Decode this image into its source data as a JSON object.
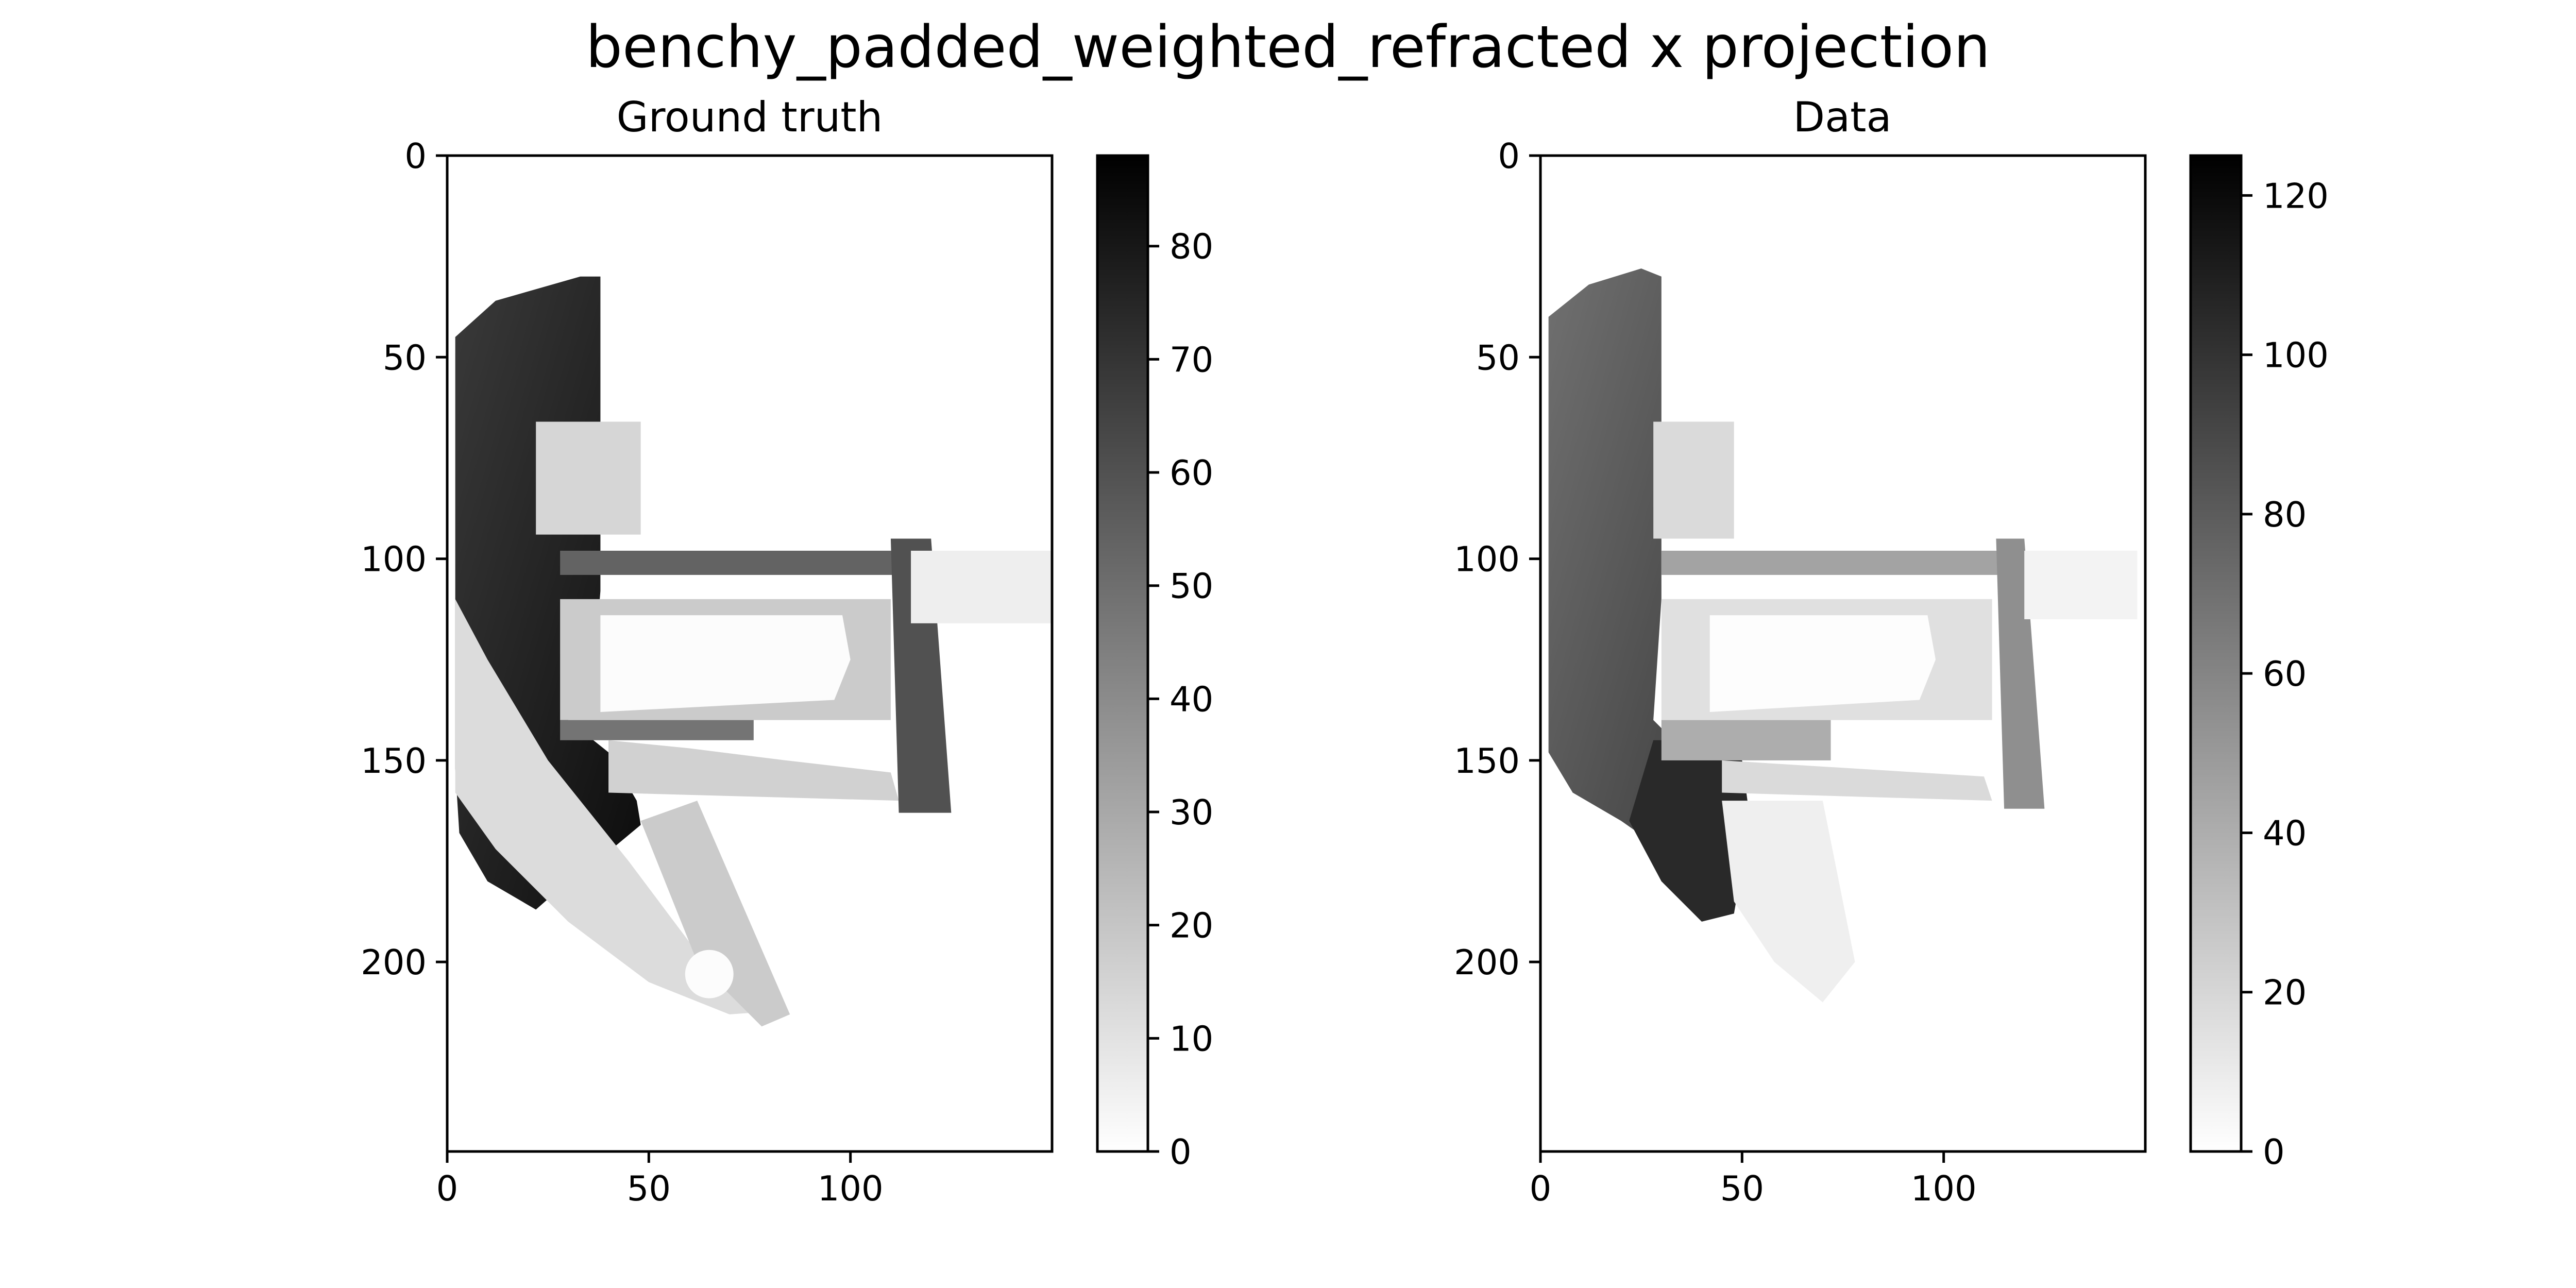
{
  "figure_title": "benchy_padded_weighted_refracted x projection",
  "chart_data": [
    {
      "type": "heatmap",
      "title": "Ground truth",
      "colormap": "gray_r",
      "x_range": [
        0,
        150
      ],
      "y_range": [
        0,
        247
      ],
      "y_inverted": true,
      "x_ticks": [
        0,
        50,
        100
      ],
      "y_ticks": [
        0,
        50,
        100,
        150,
        200
      ],
      "colorbar": {
        "min": 0,
        "max": 88,
        "ticks": [
          0,
          10,
          20,
          30,
          40,
          50,
          60,
          70,
          80
        ]
      },
      "regions": [
        {
          "shape": "poly",
          "pts": [
            [
              2,
              45
            ],
            [
              12,
              36
            ],
            [
              33,
              30
            ],
            [
              38,
              30
            ],
            [
              38,
              108
            ],
            [
              37,
              120
            ],
            [
              31,
              125
            ],
            [
              30,
              140
            ],
            [
              40,
              148
            ],
            [
              47,
              160
            ],
            [
              48,
              166
            ],
            [
              36,
              176
            ],
            [
              30,
              180
            ],
            [
              22,
              187
            ],
            [
              10,
              180
            ],
            [
              3,
              168
            ],
            [
              2,
              152
            ]
          ],
          "value": 68,
          "gradient_to": 84
        },
        {
          "shape": "poly",
          "pts": [
            [
              2,
              110
            ],
            [
              10,
              125
            ],
            [
              25,
              150
            ],
            [
              45,
              175
            ],
            [
              60,
              195
            ],
            [
              75,
              208
            ],
            [
              84,
              212
            ],
            [
              70,
              213
            ],
            [
              50,
              205
            ],
            [
              30,
              190
            ],
            [
              12,
              172
            ],
            [
              2,
              158
            ]
          ],
          "value": 12
        },
        {
          "shape": "poly",
          "pts": [
            [
              48,
              165
            ],
            [
              62,
              160
            ],
            [
              85,
              213
            ],
            [
              78,
              216
            ],
            [
              62,
              200
            ]
          ],
          "value": 18
        },
        {
          "shape": "circle",
          "cx": 65,
          "cy": 203,
          "r": 6,
          "value": 1
        },
        {
          "shape": "rect",
          "x0": 22,
          "y0": 66,
          "x1": 48,
          "y1": 94,
          "value": 14
        },
        {
          "shape": "rect",
          "x0": 28,
          "y0": 98,
          "x1": 112,
          "y1": 104,
          "value": 54
        },
        {
          "shape": "rect",
          "x0": 28,
          "y0": 110,
          "x1": 110,
          "y1": 140,
          "value": 18
        },
        {
          "shape": "poly",
          "pts": [
            [
              38,
              114
            ],
            [
              98,
              114
            ],
            [
              100,
              125
            ],
            [
              96,
              135
            ],
            [
              38,
              138
            ]
          ],
          "value": 1
        },
        {
          "shape": "rect",
          "x0": 28,
          "y0": 140,
          "x1": 76,
          "y1": 145,
          "value": 48
        },
        {
          "shape": "poly",
          "pts": [
            [
              40,
              145
            ],
            [
              60,
              147
            ],
            [
              84,
              150
            ],
            [
              110,
              153
            ],
            [
              112,
              160
            ],
            [
              40,
              158
            ]
          ],
          "value": 16
        },
        {
          "shape": "poly",
          "pts": [
            [
              110,
              95
            ],
            [
              120,
              95
            ],
            [
              125,
              163
            ],
            [
              112,
              163
            ]
          ],
          "value": 60
        },
        {
          "shape": "rect",
          "x0": 115,
          "y0": 98,
          "x1": 150,
          "y1": 116,
          "value": 6
        }
      ]
    },
    {
      "type": "heatmap",
      "title": "Data",
      "colormap": "gray_r",
      "x_range": [
        0,
        150
      ],
      "y_range": [
        0,
        247
      ],
      "y_inverted": true,
      "x_ticks": [
        0,
        50,
        100
      ],
      "y_ticks": [
        0,
        50,
        100,
        150,
        200
      ],
      "colorbar": {
        "min": 0,
        "max": 125,
        "ticks": [
          0,
          20,
          40,
          60,
          80,
          100,
          120
        ]
      },
      "regions": [
        {
          "shape": "poly",
          "pts": [
            [
              2,
              40
            ],
            [
              12,
              32
            ],
            [
              25,
              28
            ],
            [
              30,
              30
            ],
            [
              30,
              110
            ],
            [
              28,
              140
            ],
            [
              38,
              150
            ],
            [
              45,
              165
            ],
            [
              40,
              178
            ],
            [
              30,
              172
            ],
            [
              20,
              165
            ],
            [
              8,
              158
            ],
            [
              2,
              148
            ]
          ],
          "value": 70,
          "gradient_to": 95
        },
        {
          "shape": "poly",
          "pts": [
            [
              28,
              145
            ],
            [
              40,
              145
            ],
            [
              50,
              150
            ],
            [
              52,
              165
            ],
            [
              48,
              188
            ],
            [
              40,
              190
            ],
            [
              30,
              180
            ],
            [
              22,
              165
            ]
          ],
          "value": 105
        },
        {
          "shape": "rect",
          "x0": 28,
          "y0": 66,
          "x1": 48,
          "y1": 95,
          "value": 18
        },
        {
          "shape": "rect",
          "x0": 30,
          "y0": 98,
          "x1": 115,
          "y1": 104,
          "value": 45
        },
        {
          "shape": "rect",
          "x0": 30,
          "y0": 110,
          "x1": 112,
          "y1": 140,
          "value": 15
        },
        {
          "shape": "poly",
          "pts": [
            [
              42,
              114
            ],
            [
              96,
              114
            ],
            [
              98,
              125
            ],
            [
              94,
              135
            ],
            [
              42,
              138
            ]
          ],
          "value": 1
        },
        {
          "shape": "rect",
          "x0": 30,
          "y0": 140,
          "x1": 72,
          "y1": 150,
          "value": 40
        },
        {
          "shape": "poly",
          "pts": [
            [
              45,
              150
            ],
            [
              110,
              154
            ],
            [
              112,
              160
            ],
            [
              45,
              158
            ]
          ],
          "value": 18
        },
        {
          "shape": "poly",
          "pts": [
            [
              113,
              95
            ],
            [
              120,
              95
            ],
            [
              125,
              162
            ],
            [
              115,
              162
            ]
          ],
          "value": 55
        },
        {
          "shape": "rect",
          "x0": 120,
          "y0": 98,
          "x1": 148,
          "y1": 115,
          "value": 6
        },
        {
          "shape": "poly",
          "pts": [
            [
              45,
              160
            ],
            [
              70,
              160
            ],
            [
              78,
              200
            ],
            [
              70,
              210
            ],
            [
              58,
              200
            ],
            [
              48,
              185
            ]
          ],
          "value": 8
        }
      ]
    }
  ]
}
